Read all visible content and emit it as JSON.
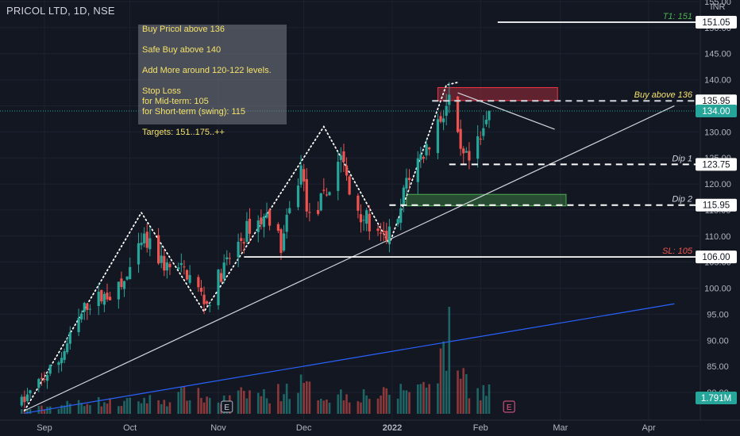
{
  "header": {
    "symbol_line": "PRICOL LTD, 1D, NSE"
  },
  "note": {
    "lines": [
      "Buy Pricol above 136",
      "",
      "Safe Buy above 140",
      "",
      "Add More around 120-122 levels.",
      "",
      "Stop Loss",
      "for Mid-term: 105",
      "for Short-term (swing): 115",
      "",
      "Targets: 151..175..++"
    ]
  },
  "colors": {
    "background": "#131722",
    "up": "#26a69a",
    "down": "#ef5350",
    "grid": "#1e2230",
    "axis_text": "#b2b5be",
    "current_price": "#26a69a",
    "trendline_blue": "#2962ff",
    "note_text": "#f5e26a"
  },
  "chart_data": {
    "type": "candlestick",
    "symbol": "PRICOL LTD",
    "timeframe": "1D",
    "exchange": "NSE",
    "currency": "INR",
    "ylim": [
      76,
      156
    ],
    "y_ticks": [
      80,
      85,
      90,
      95,
      100,
      105,
      110,
      115,
      120,
      125,
      130,
      135,
      140,
      145,
      150,
      155
    ],
    "y_tick_labels": [
      "80.00",
      "85.00",
      "90.00",
      "95.00",
      "100.00",
      "105.00",
      "110.00",
      "115.00",
      "120.00",
      "125.00",
      "130.00",
      "135.00",
      "140.00",
      "145.00",
      "150.00",
      "155.00"
    ],
    "x_tick_labels": [
      "Sep",
      "Oct",
      "Nov",
      "Dec",
      "2022",
      "Feb",
      "Mar",
      "Apr"
    ],
    "x_tick_dates": [
      "2021-09-01",
      "2021-10-01",
      "2021-11-01",
      "2021-12-01",
      "2022-01-01",
      "2022-02-01",
      "2022-03-01",
      "2022-04-01"
    ],
    "last_date": "2022-02-04",
    "price_labels": [
      {
        "value": 151.05,
        "label": "151.05",
        "style": "white"
      },
      {
        "value": 135.95,
        "label": "135.95",
        "style": "white"
      },
      {
        "value": 134.0,
        "label": "134.00",
        "style": "current"
      },
      {
        "value": 123.75,
        "label": "123.75",
        "style": "white"
      },
      {
        "value": 115.95,
        "label": "115.95",
        "style": "white"
      },
      {
        "value": 106.0,
        "label": "106.00",
        "style": "white"
      }
    ],
    "volume_label": "1.791M",
    "levels": [
      {
        "value": 151.05,
        "label": "T1: 151",
        "color": "#4caf50",
        "dash": false,
        "from": "2022-02-07",
        "to": "2022-04-10"
      },
      {
        "value": 135.95,
        "label": "Buy above 136",
        "color": "#f5e26a",
        "dash": true,
        "from": "2022-01-15",
        "to": "2022-04-10"
      },
      {
        "value": 123.75,
        "label": "Dip 1",
        "color": "#d1d4dc",
        "dash": true,
        "from": "2022-01-21",
        "to": "2022-04-10"
      },
      {
        "value": 115.95,
        "label": "Dip 2",
        "color": "#d1d4dc",
        "dash": true,
        "from": "2021-12-31",
        "to": "2022-04-10"
      },
      {
        "value": 106.0,
        "label": "SL: 105",
        "color": "#ef5350",
        "dash": false,
        "from": "2021-11-10",
        "to": "2022-04-10"
      }
    ],
    "zones": [
      {
        "from": "2022-01-17",
        "to": "2022-02-28",
        "top": 138.5,
        "bottom": 136.0,
        "color": "red"
      },
      {
        "from": "2022-01-06",
        "to": "2022-03-03",
        "top": 118.0,
        "bottom": 115.8,
        "color": "green"
      }
    ],
    "event_markers": [
      {
        "date": "2021-11-04",
        "label": "E"
      },
      {
        "date": "2022-02-11",
        "label": "E"
      }
    ],
    "trendlines": [
      {
        "points": [
          [
            "2021-08-25",
            76.5
          ],
          [
            "2022-04-10",
            135
          ]
        ],
        "color": "#d1d4dc"
      },
      {
        "points": [
          [
            "2021-08-25",
            76.0
          ],
          [
            "2022-04-10",
            97
          ]
        ],
        "color": "#2962ff"
      },
      {
        "points": [
          [
            "2022-01-24",
            137.5
          ],
          [
            "2022-02-27",
            130.5
          ]
        ],
        "color": "#d1d4dc"
      }
    ],
    "dotted_pattern": [
      [
        "2021-08-25",
        76.5
      ],
      [
        "2021-10-05",
        114.5
      ],
      [
        "2021-10-27",
        95.5
      ],
      [
        "2021-12-08",
        131.0
      ],
      [
        "2021-12-31",
        108.5
      ],
      [
        "2022-01-20",
        139.0
      ],
      [
        "2022-01-24",
        139.5
      ]
    ],
    "anchors": [
      [
        "2021-08-24",
        78,
        0.3
      ],
      [
        "2021-09-06",
        86,
        0.6
      ],
      [
        "2021-09-16",
        97,
        1.0
      ],
      [
        "2021-09-28",
        100,
        0.8
      ],
      [
        "2021-10-06",
        109,
        1.1
      ],
      [
        "2021-10-14",
        104,
        1.0
      ],
      [
        "2021-10-21",
        103,
        1.6
      ],
      [
        "2021-10-28",
        97,
        1.2
      ],
      [
        "2021-11-02",
        103,
        1.0
      ],
      [
        "2021-11-12",
        112,
        1.6
      ],
      [
        "2021-11-19",
        114,
        1.4
      ],
      [
        "2021-11-23",
        108,
        1.7
      ],
      [
        "2021-11-30",
        123,
        2.2
      ],
      [
        "2021-12-03",
        113,
        1.8
      ],
      [
        "2021-12-09",
        118,
        1.3
      ],
      [
        "2021-12-14",
        126,
        1.5
      ],
      [
        "2021-12-17",
        118,
        1.4
      ],
      [
        "2021-12-23",
        113,
        1.5
      ],
      [
        "2021-12-28",
        109,
        1.4
      ],
      [
        "2022-01-03",
        112,
        1.6
      ],
      [
        "2022-01-06",
        121,
        2.0
      ],
      [
        "2022-01-13",
        127,
        2.2
      ],
      [
        "2022-01-18",
        133,
        4.0
      ],
      [
        "2022-01-21",
        136,
        5.5
      ],
      [
        "2022-01-25",
        125,
        3.5
      ],
      [
        "2022-01-28",
        124,
        2.0
      ],
      [
        "2022-02-01",
        128,
        1.8
      ],
      [
        "2022-02-04",
        134,
        1.791
      ]
    ]
  }
}
